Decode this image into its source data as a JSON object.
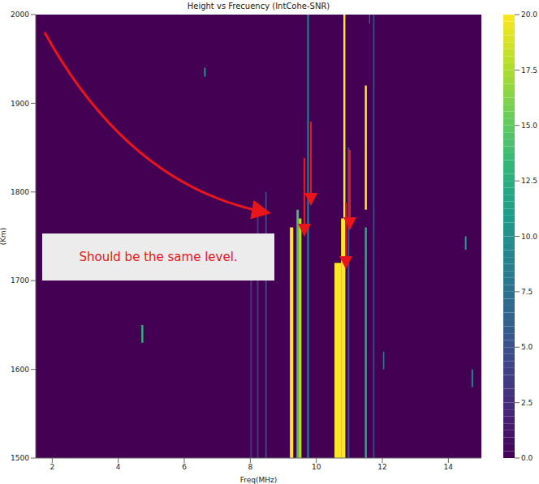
{
  "chart_data": {
    "type": "heatmap",
    "title": "Height vs Frecuency (IntCohe-SNR)",
    "x_label": "Freq(MHz)",
    "y_label": "(Km)",
    "xlim": [
      1.5,
      15
    ],
    "xticks": [
      2,
      4,
      6,
      8,
      10,
      12,
      14
    ],
    "ylim": [
      1500,
      2000
    ],
    "yticks": [
      1500,
      1600,
      1700,
      1800,
      1900,
      2000
    ],
    "grid": false,
    "cells": [
      {
        "x0": 9.2,
        "x1": 9.3,
        "y0": 1500,
        "y1": 1760,
        "value": 20
      },
      {
        "x0": 9.4,
        "x1": 9.47,
        "y0": 1500,
        "y1": 1780,
        "value": 14
      },
      {
        "x0": 9.47,
        "x1": 9.55,
        "y0": 1500,
        "y1": 1770,
        "value": 18
      },
      {
        "x0": 9.72,
        "x1": 9.78,
        "y0": 1500,
        "y1": 2000,
        "value": 7
      },
      {
        "x0": 10.55,
        "x1": 10.75,
        "y0": 1500,
        "y1": 1720,
        "value": 20
      },
      {
        "x0": 10.75,
        "x1": 10.82,
        "y0": 1500,
        "y1": 1770,
        "value": 20
      },
      {
        "x0": 10.82,
        "x1": 10.88,
        "y0": 1500,
        "y1": 2000,
        "value": 20
      },
      {
        "x0": 11.47,
        "x1": 11.53,
        "y0": 1780,
        "y1": 1920,
        "value": 20
      },
      {
        "x0": 11.47,
        "x1": 11.53,
        "y0": 1500,
        "y1": 1760,
        "value": 12
      },
      {
        "x0": 8.45,
        "x1": 8.5,
        "y0": 1500,
        "y1": 1800,
        "value": 4
      },
      {
        "x0": 8.2,
        "x1": 8.25,
        "y0": 1500,
        "y1": 1780,
        "value": 3
      },
      {
        "x0": 8.0,
        "x1": 8.05,
        "y0": 1500,
        "y1": 1750,
        "value": 3
      },
      {
        "x0": 11.72,
        "x1": 11.76,
        "y0": 1500,
        "y1": 2000,
        "value": 5
      },
      {
        "x0": 10.95,
        "x1": 11.0,
        "y0": 1500,
        "y1": 1850,
        "value": 5
      },
      {
        "x0": 4.7,
        "x1": 4.76,
        "y0": 1630,
        "y1": 1650,
        "value": 13
      },
      {
        "x0": 14.5,
        "x1": 14.55,
        "y0": 1735,
        "y1": 1750,
        "value": 11
      },
      {
        "x0": 6.6,
        "x1": 6.65,
        "y0": 1930,
        "y1": 1940,
        "value": 10
      },
      {
        "x0": 12.02,
        "x1": 12.06,
        "y0": 1600,
        "y1": 1620,
        "value": 8
      },
      {
        "x0": 14.7,
        "x1": 14.75,
        "y0": 1580,
        "y1": 1600,
        "value": 9
      },
      {
        "x0": 11.6,
        "x1": 11.63,
        "y0": 1990,
        "y1": 2000,
        "value": 8
      }
    ],
    "colorbar": {
      "range": [
        0,
        20
      ],
      "ticks": [
        {
          "value": 0,
          "label": "0.0"
        },
        2.5,
        {
          "value": 5,
          "label": "5.0"
        },
        7.5,
        {
          "value": 10,
          "label": "10.0"
        },
        12.5,
        {
          "value": 15,
          "label": "15.0"
        },
        17.5,
        {
          "value": 20,
          "label": "20.0"
        }
      ]
    },
    "annotations": [
      {
        "text": "Should be the same level."
      }
    ]
  }
}
